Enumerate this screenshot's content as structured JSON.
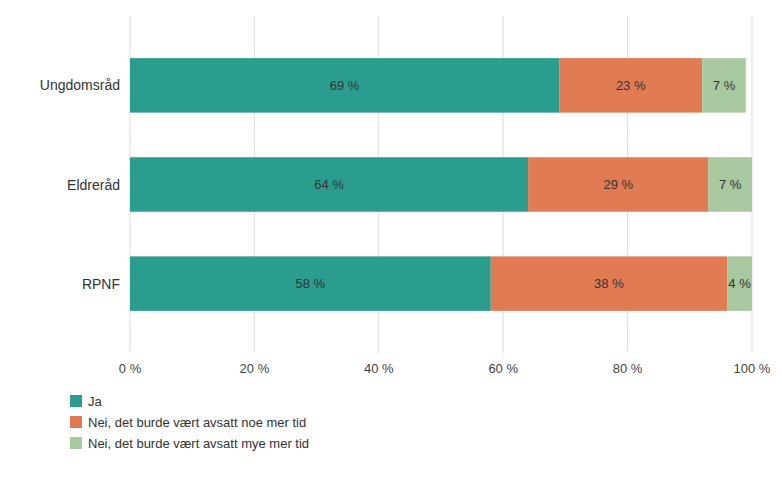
{
  "chart_data": {
    "type": "bar",
    "orientation": "horizontal",
    "stacked": true,
    "categories": [
      "Ungdomsråd",
      "Eldreråd",
      "RPNF"
    ],
    "series": [
      {
        "name": "Ja",
        "color": "#2a9d8f",
        "values": [
          69,
          64,
          58
        ],
        "value_labels": [
          "69 %",
          "64 %",
          "58 %"
        ]
      },
      {
        "name": "Nei, det burde vært avsatt noe mer tid",
        "color": "#e07b54",
        "values": [
          23,
          29,
          38
        ],
        "value_labels": [
          "23 %",
          "29 %",
          "38 %"
        ]
      },
      {
        "name": "Nei, det burde vært avsatt mye mer tid",
        "color": "#a8c8a0",
        "values": [
          7,
          7,
          4
        ],
        "value_labels": [
          "7 %",
          "7 %",
          "4 %"
        ]
      }
    ],
    "xlim": [
      0,
      100
    ],
    "xticks": [
      {
        "value": 0,
        "label": "0 %"
      },
      {
        "value": 20,
        "label": "20 %"
      },
      {
        "value": 40,
        "label": "40 %"
      },
      {
        "value": 60,
        "label": "60 %"
      },
      {
        "value": 80,
        "label": "80 %"
      },
      {
        "value": 100,
        "label": "100 %"
      }
    ],
    "grid": true,
    "data_labels": true,
    "legend": "bottom"
  }
}
